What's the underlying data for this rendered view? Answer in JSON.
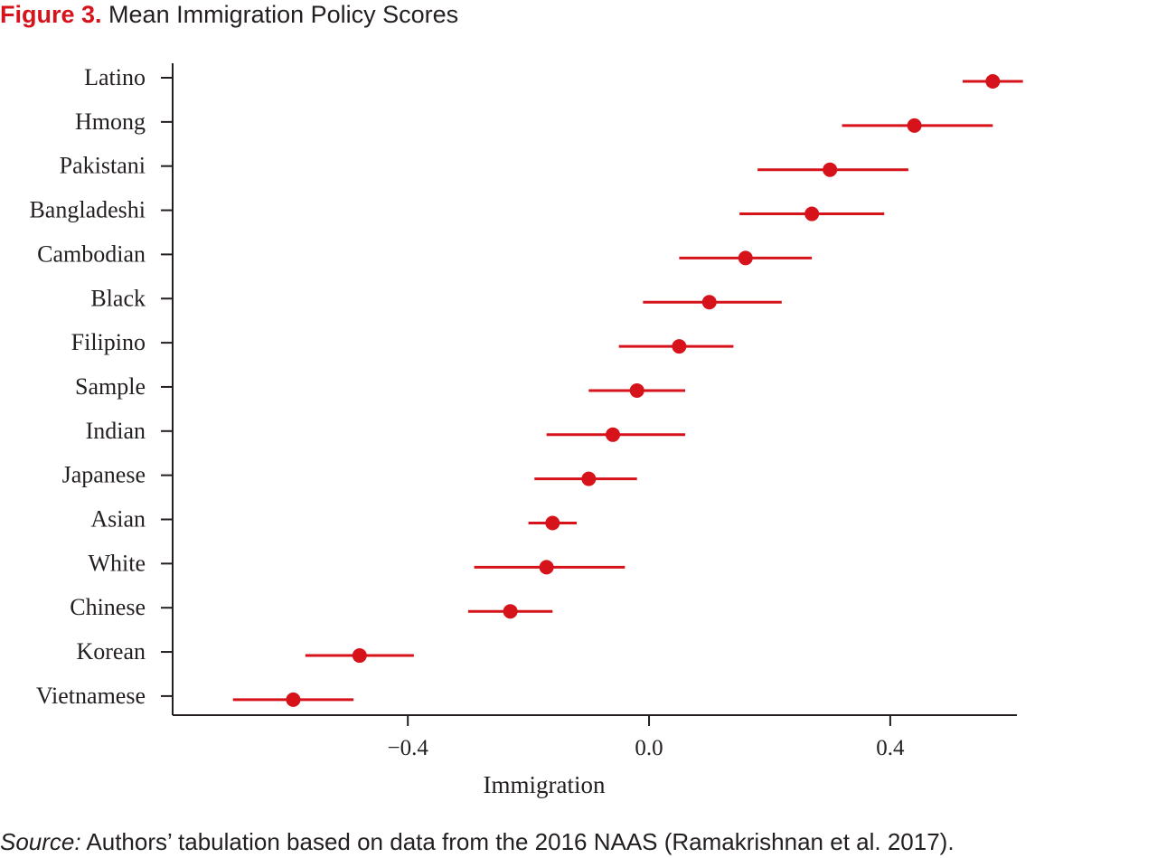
{
  "figure": {
    "number": "Figure 3.",
    "title": "Mean Immigration Policy Scores",
    "source_label": "Source:",
    "source_text": " Authors’ tabulation based on data from the 2016 NAAS (Ramakrishnan et al. 2017)."
  },
  "chart_data": {
    "type": "scatter",
    "subtype": "dot-and-whisker",
    "xlabel": "Immigration",
    "ylabel": "",
    "xlim": [
      -0.79,
      0.61
    ],
    "xticks": [
      -0.4,
      0.0,
      0.4
    ],
    "xtick_labels": [
      "−0.4",
      "0.0",
      "0.4"
    ],
    "grid": false,
    "legend": "none",
    "color": "#d6121b",
    "categories": [
      "Latino",
      "Hmong",
      "Pakistani",
      "Bangladeshi",
      "Cambodian",
      "Black",
      "Filipino",
      "Sample",
      "Indian",
      "Japanese",
      "Asian",
      "White",
      "Chinese",
      "Korean",
      "Vietnamese"
    ],
    "means": [
      0.57,
      0.44,
      0.3,
      0.27,
      0.16,
      0.1,
      0.05,
      -0.02,
      -0.06,
      -0.1,
      -0.16,
      -0.17,
      -0.23,
      -0.48,
      -0.59
    ],
    "ci_low": [
      0.52,
      0.32,
      0.18,
      0.15,
      0.05,
      -0.01,
      -0.05,
      -0.1,
      -0.17,
      -0.19,
      -0.2,
      -0.29,
      -0.3,
      -0.57,
      -0.69
    ],
    "ci_high": [
      0.62,
      0.57,
      0.43,
      0.39,
      0.27,
      0.22,
      0.14,
      0.06,
      0.06,
      -0.02,
      -0.12,
      -0.04,
      -0.16,
      -0.39,
      -0.49
    ]
  }
}
